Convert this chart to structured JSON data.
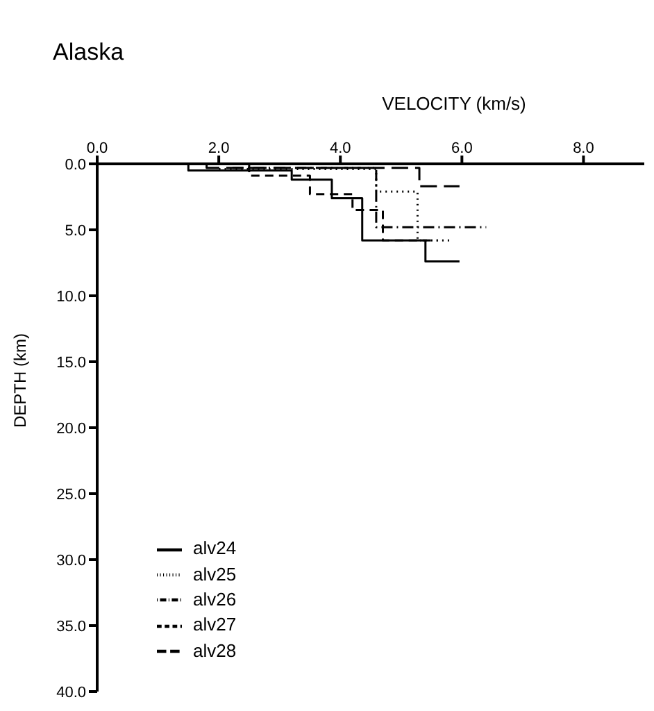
{
  "chart_data": {
    "type": "line",
    "title": "Alaska",
    "xlabel": "VELOCITY (km/s)",
    "ylabel": "DEPTH (km)",
    "xlim": [
      0,
      9
    ],
    "xticks": [
      {
        "value": 0,
        "label": "0.0"
      },
      {
        "value": 2,
        "label": "2.0"
      },
      {
        "value": 4,
        "label": "4.0"
      },
      {
        "value": 6,
        "label": "6.0"
      },
      {
        "value": 8,
        "label": "8.0"
      }
    ],
    "ylim": [
      40,
      0
    ],
    "yticks": [
      {
        "value": 0,
        "label": "0.0"
      },
      {
        "value": 5,
        "label": "5.0"
      },
      {
        "value": 10,
        "label": "10.0"
      },
      {
        "value": 15,
        "label": "15.0"
      },
      {
        "value": 20,
        "label": "20.0"
      },
      {
        "value": 25,
        "label": "25.0"
      },
      {
        "value": 30,
        "label": "30.0"
      },
      {
        "value": 35,
        "label": "35.0"
      },
      {
        "value": 40,
        "label": "40.0"
      }
    ],
    "grid": false,
    "legend": "bottom left",
    "marker": "none",
    "series": [
      {
        "name": "alv24",
        "color": "#000000",
        "line_style": "solid",
        "x": [
          1.5,
          1.5,
          3.2,
          3.2,
          3.86,
          3.86,
          4.36,
          4.36,
          5.4,
          5.4,
          5.96
        ],
        "values": [
          0,
          0.5,
          0.5,
          1.2,
          1.2,
          2.6,
          2.6,
          5.8,
          5.8,
          7.4,
          7.4
        ]
      },
      {
        "name": "alv25",
        "color": "#000000",
        "line_style": "dotted",
        "x": [
          2.0,
          2.0,
          4.59,
          4.59,
          5.27,
          5.27,
          5.8
        ],
        "values": [
          0,
          0.4,
          0.4,
          2.1,
          2.1,
          5.8,
          5.8
        ]
      },
      {
        "name": "alv26",
        "color": "#000000",
        "line_style": "dashdot",
        "x": [
          2.2,
          2.2,
          4.59,
          4.59,
          6.4
        ],
        "values": [
          0,
          0.3,
          0.3,
          4.8,
          4.8
        ]
      },
      {
        "name": "alv27",
        "color": "#000000",
        "line_style": "dashed",
        "x": [
          2.5,
          2.5,
          3.5,
          3.5,
          4.2,
          4.2,
          4.7,
          4.7,
          5.6
        ],
        "values": [
          0,
          0.9,
          0.9,
          2.3,
          2.3,
          3.5,
          3.5,
          5.8,
          5.8
        ]
      },
      {
        "name": "alv28",
        "color": "#000000",
        "line_style": "longdash",
        "x": [
          1.8,
          1.8,
          5.3,
          5.3,
          5.96
        ],
        "values": [
          0,
          0.3,
          0.3,
          1.7,
          1.7
        ]
      }
    ]
  }
}
